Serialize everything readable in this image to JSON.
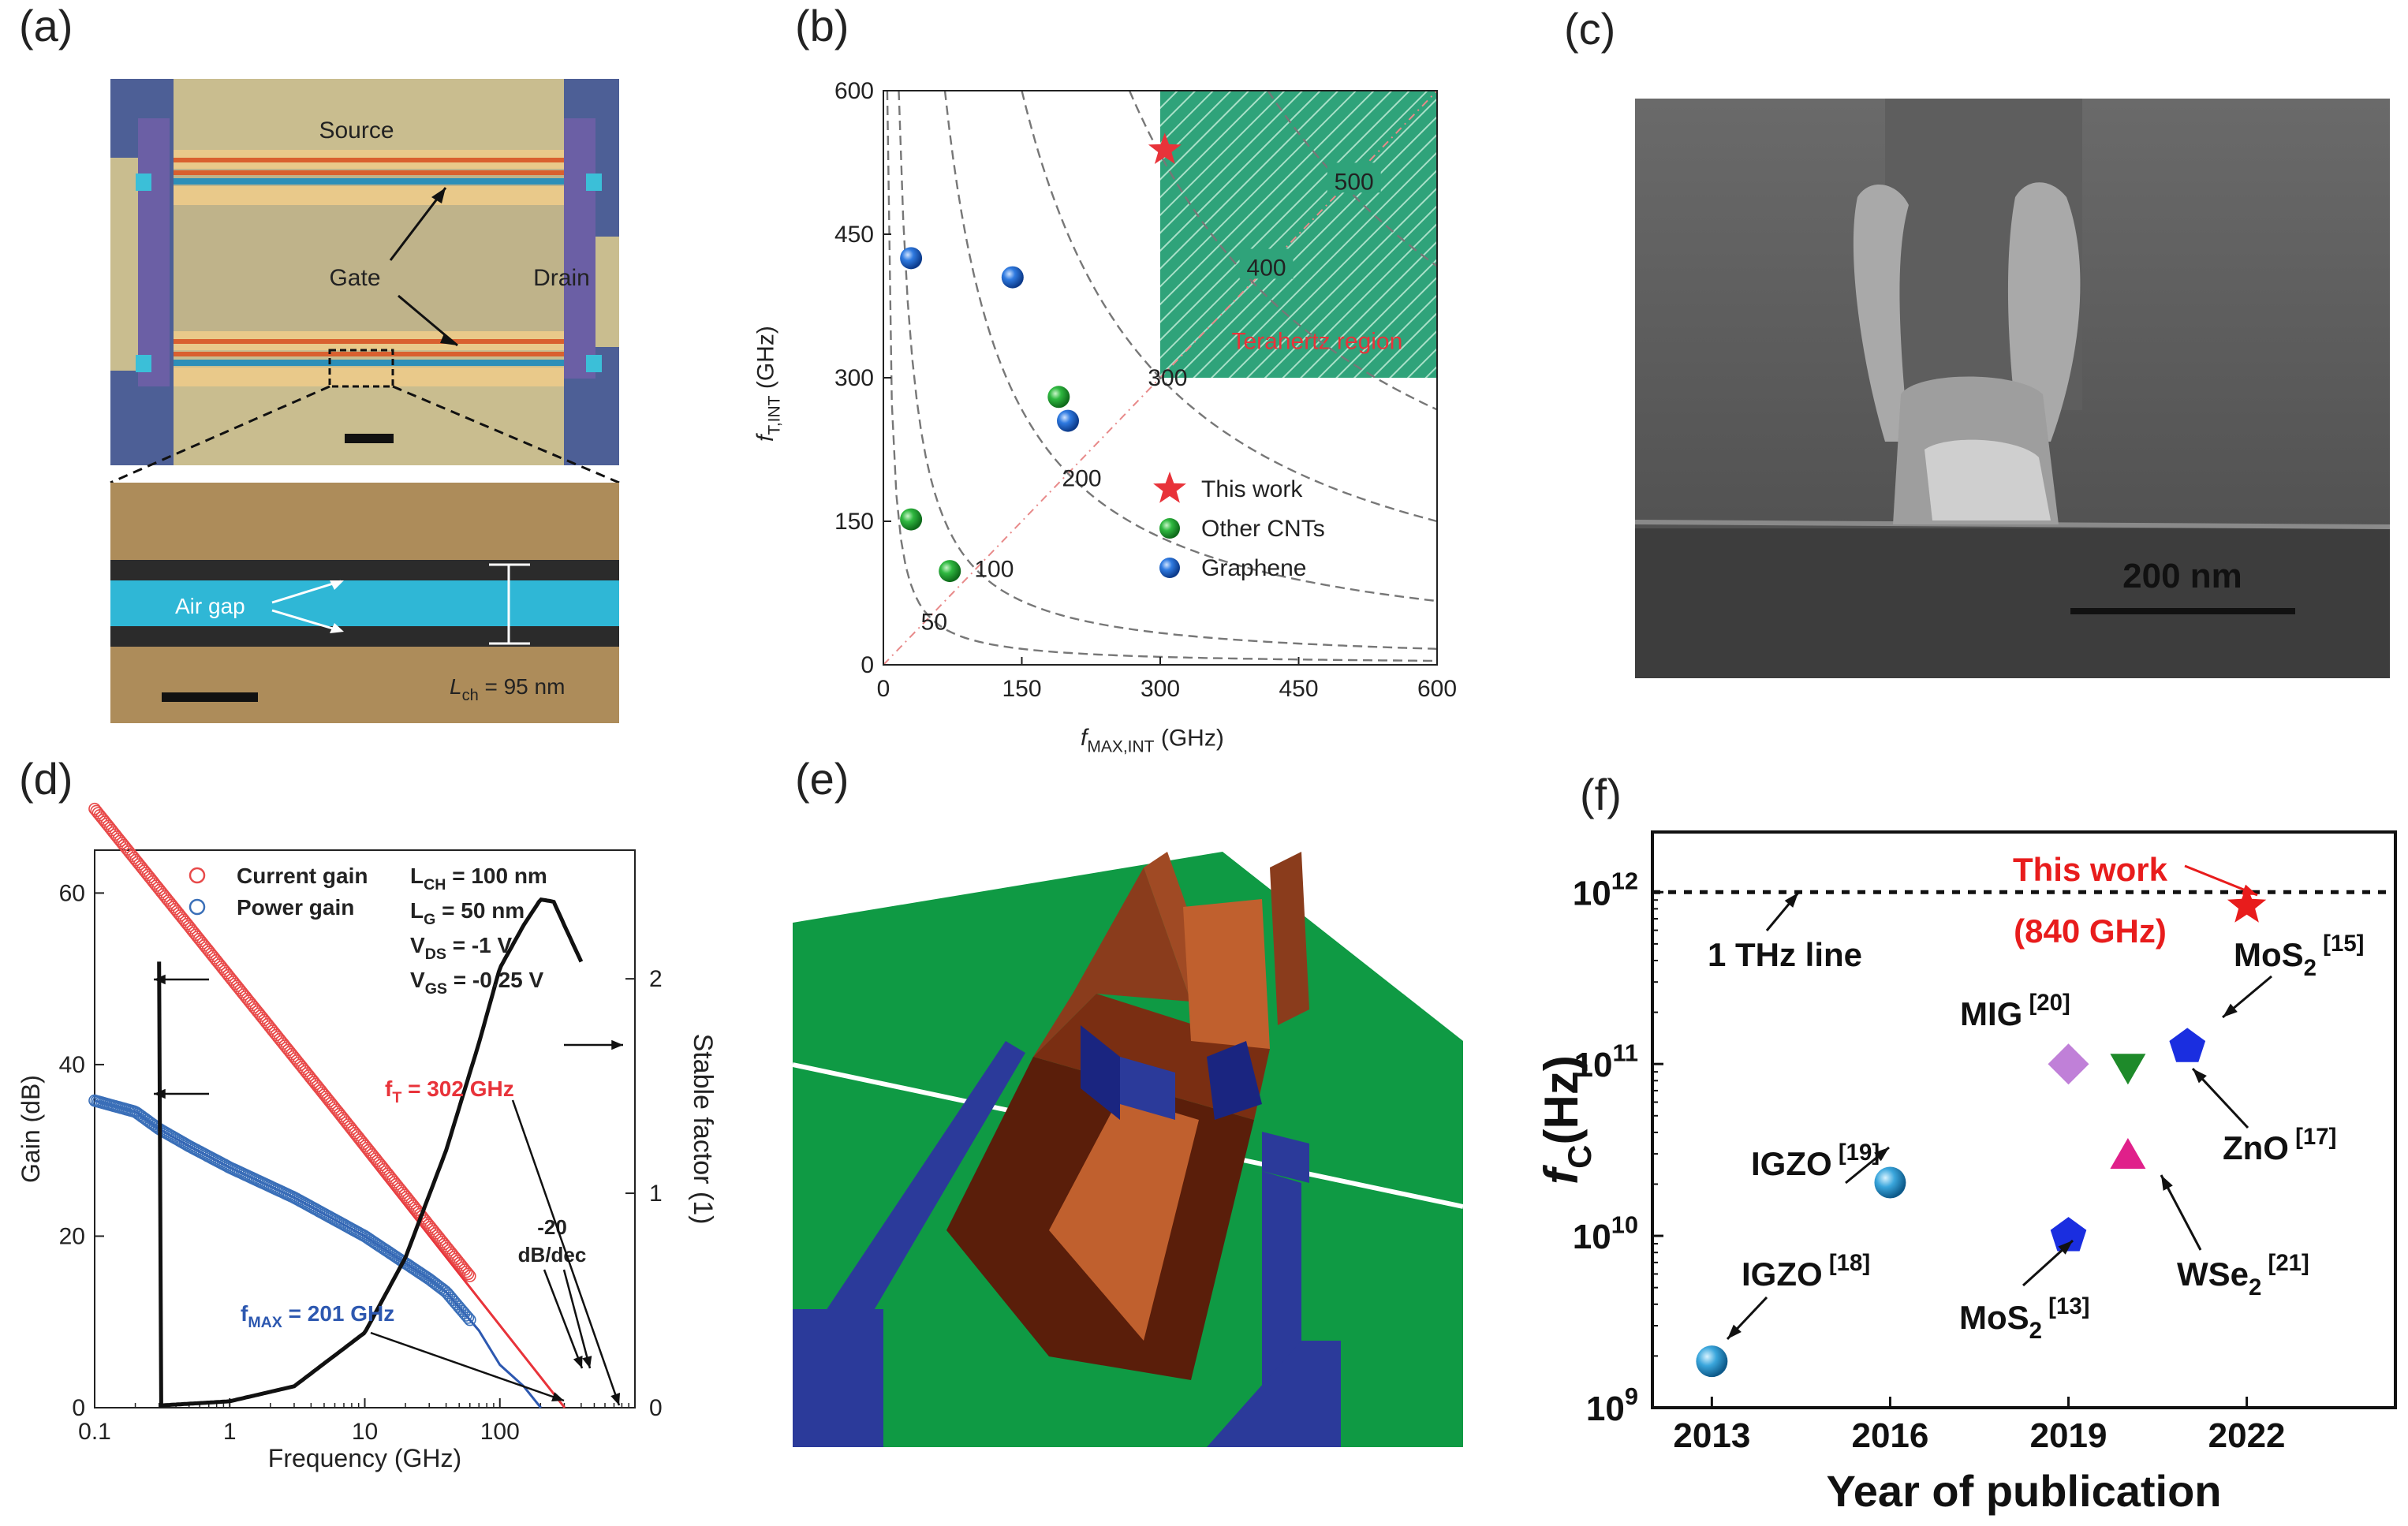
{
  "panel_labels": {
    "a": "(a)",
    "b": "(b)",
    "c": "(c)",
    "d": "(d)",
    "e": "(e)",
    "f": "(f)"
  },
  "panel_a": {
    "source_label": "Source",
    "gate_label": "Gate",
    "drain_label": "Drain",
    "airgap_label": "Air gap",
    "lch_label": "L",
    "lch_sub": "ch",
    "lch_value": " = 95 nm",
    "colors": {
      "metal": "#c9b98a",
      "gate": "#d8623a",
      "substrate": "#6c7fb4",
      "cyan": "#3bbfd8"
    }
  },
  "panel_c": {
    "scalebar_label": "200 nm"
  },
  "chart_data": [
    {
      "panel": "b",
      "type": "scatter",
      "xlabel_main": "f",
      "xlabel_sub": "MAX,INT",
      "xlabel_unit": " (GHz)",
      "ylabel_main": "f",
      "ylabel_sub": "T,INT",
      "ylabel_unit": " (GHz)",
      "xlim": [
        0,
        600
      ],
      "ylim": [
        0,
        600
      ],
      "xticks": [
        0,
        150,
        300,
        450,
        600
      ],
      "yticks": [
        0,
        150,
        300,
        450,
        600
      ],
      "contours": [
        50,
        100,
        200,
        300,
        400,
        500
      ],
      "contour_labels": [
        {
          "v": 50,
          "text": "50"
        },
        {
          "v": 100,
          "text": "100"
        },
        {
          "v": 200,
          "text": "200"
        },
        {
          "v": 300,
          "text": "300"
        },
        {
          "v": 400,
          "text": "400"
        },
        {
          "v": 500,
          "text": "500"
        }
      ],
      "region": {
        "x": [
          300,
          600
        ],
        "y": [
          300,
          600
        ],
        "label": "Terahertz region",
        "color": "#2fa37a"
      },
      "series": [
        {
          "name": "This work",
          "marker": "star",
          "color": "#e8333a",
          "points": [
            [
              305,
              538
            ]
          ]
        },
        {
          "name": "Other CNTs",
          "marker": "ball",
          "color": "#22a03a",
          "points": [
            [
              30,
              152
            ],
            [
              72,
              98
            ],
            [
              190,
              280
            ]
          ]
        },
        {
          "name": "Graphene",
          "marker": "ball",
          "color": "#2a6fd6",
          "points": [
            [
              30,
              425
            ],
            [
              140,
              405
            ],
            [
              200,
              255
            ]
          ]
        }
      ]
    },
    {
      "panel": "d",
      "type": "line",
      "xlabel": "Frequency (GHz)",
      "ylabel_left": "Gain (dB)",
      "ylabel_right": "Stable factor (1)",
      "xscale": "log",
      "xlim": [
        0.1,
        1000
      ],
      "ylim_left": [
        0,
        65
      ],
      "ylim_right": [
        0,
        2.6
      ],
      "xtick_labels": [
        {
          "v": 0.1,
          "t": "0.1"
        },
        {
          "v": 1,
          "t": "1"
        },
        {
          "v": 10,
          "t": "10"
        },
        {
          "v": 100,
          "t": "100"
        }
      ],
      "yticks_left": [
        0,
        20,
        40,
        60
      ],
      "yticks_right": [
        0,
        1,
        2
      ],
      "legend": [
        {
          "name": "Current gain",
          "color": "#e84a4a"
        },
        {
          "name": "Power gain",
          "color": "#3a6fb8"
        }
      ],
      "conditions": [
        {
          "main": "L",
          "sub": "CH",
          "rest": " = 100 nm"
        },
        {
          "main": "L",
          "sub": "G",
          "rest": " = 50 nm"
        },
        {
          "main": "V",
          "sub": "DS",
          "rest": " = -1 V"
        },
        {
          "main": "V",
          "sub": "GS",
          "rest": " = -0.25 V"
        }
      ],
      "ft_label": {
        "main": "f",
        "sub": "T",
        "rest": " = 302 GHz",
        "color": "#e8333a"
      },
      "fmax_label": {
        "main": "f",
        "sub": "MAX",
        "rest": " = 201 GHz",
        "color": "#2d58b0"
      },
      "slope_label_1": "-20",
      "slope_label_2": "dB/dec",
      "current_gain": {
        "f_cutoff": 302,
        "slope_db_per_dec": -20
      },
      "power_gain": {
        "points": [
          [
            0.1,
            35.8
          ],
          [
            0.2,
            34.5
          ],
          [
            0.3,
            32.5
          ],
          [
            0.5,
            30.5
          ],
          [
            1,
            28
          ],
          [
            3,
            24.5
          ],
          [
            10,
            20
          ],
          [
            30,
            15
          ],
          [
            40,
            13.5
          ],
          [
            70,
            9
          ],
          [
            100,
            5
          ],
          [
            150,
            2.5
          ],
          [
            201,
            0
          ]
        ]
      },
      "stable_factor": {
        "points": [
          [
            0.3,
            0.01
          ],
          [
            1,
            0.03
          ],
          [
            3,
            0.1
          ],
          [
            10,
            0.35
          ],
          [
            20,
            0.7
          ],
          [
            40,
            1.2
          ],
          [
            70,
            1.7
          ],
          [
            100,
            2.05
          ],
          [
            150,
            2.25
          ],
          [
            200,
            2.37
          ],
          [
            250,
            2.36
          ],
          [
            300,
            2.25
          ],
          [
            400,
            2.08
          ]
        ]
      }
    },
    {
      "panel": "f",
      "type": "scatter",
      "xlabel": "Year of publication",
      "ylabel_main": "f",
      "ylabel_sub": "C",
      "ylabel_unit": "(Hz)",
      "yscale": "log",
      "xlim": [
        2012,
        2024.5
      ],
      "ylim_exp": [
        9,
        12.35
      ],
      "xticks": [
        2013,
        2016,
        2019,
        2022
      ],
      "yticks_exp": [
        9,
        10,
        11,
        12
      ],
      "thz_line": {
        "value_exp": 12,
        "label": "1 THz line"
      },
      "points": [
        {
          "label": "IGZO",
          "ref": "[18]",
          "year": 2013,
          "exp": 9.27,
          "marker": "ball",
          "color": "#3aa0d8"
        },
        {
          "label": "IGZO",
          "ref": "[19]",
          "year": 2016,
          "exp": 10.31,
          "marker": "ball",
          "color": "#3aa0d8"
        },
        {
          "label": "MoS2",
          "ref": "[13]",
          "year": 2019,
          "exp": 10.0,
          "marker": "pentagon",
          "color": "#1a2ee0"
        },
        {
          "label": "MIG",
          "ref": "[20]",
          "year": 2019,
          "exp": 11.0,
          "marker": "diamond",
          "color": "#c080d8"
        },
        {
          "label": "ZnO",
          "ref": "[17]",
          "year": 2020,
          "exp": 11.0,
          "marker": "tri-down",
          "color": "#1e8a2a"
        },
        {
          "label": "WSe2",
          "ref": "[21]",
          "year": 2020,
          "exp": 10.45,
          "marker": "tri-up",
          "color": "#e0208a"
        },
        {
          "label": "MoS2",
          "ref": "[15]",
          "year": 2021,
          "exp": 11.1,
          "marker": "pentagon",
          "color": "#1a2ee0"
        },
        {
          "label": "This work",
          "ref": "",
          "year": 2022,
          "exp": 11.92,
          "marker": "star",
          "color": "#e81c1c"
        }
      ],
      "annotations": {
        "this_work": "This work",
        "this_work_value": "(840 GHz)",
        "thz": "1 THz line",
        "igzo18": "IGZO",
        "igzo18_ref": "[18]",
        "igzo19": "IGZO",
        "igzo19_ref": "[19]",
        "mig": "MIG",
        "mig_ref": "[20]",
        "mos2_15_main": "MoS",
        "mos2_15_sub": "2",
        "mos2_15_ref": "[15]",
        "zno": "ZnO",
        "zno_ref": "[17]",
        "wse2_main": "WSe",
        "wse2_sub": "2",
        "wse2_ref": "[21]",
        "mos2_13_main": "MoS",
        "mos2_13_sub": "2",
        "mos2_13_ref": "[13]"
      }
    }
  ]
}
